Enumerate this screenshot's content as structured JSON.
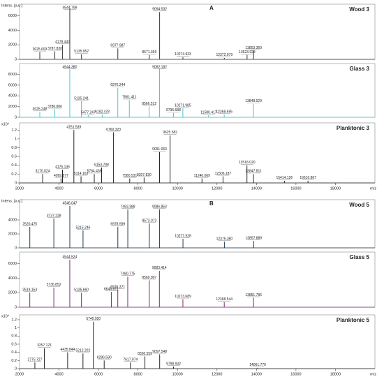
{
  "chart_data": [
    {
      "type": "spectrum",
      "title": "Wood 3",
      "panel_label": "A",
      "y_label": "Intens. [a.u.]",
      "color": "#333333",
      "xlim": [
        2000,
        20000
      ],
      "ylim": [
        0,
        7200
      ],
      "yticks": [
        0,
        2000,
        4000,
        6000
      ],
      "x": [
        3025.693,
        3787.83,
        4178.44,
        4544.799,
        5135.952,
        6977.987,
        8571.369,
        9094.532,
        10274.933,
        12372.079,
        13523.923,
        13853.36
      ],
      "x_labels": [
        "3025.693",
        "3787.830",
        "4178.440",
        "4544.799",
        "5135.952",
        "6977.987",
        "8571.369",
        "9094.532",
        "10274.933",
        "12372.079",
        "13523.923",
        "13853.360"
      ],
      "intensities": [
        1000,
        1100,
        2000,
        7000,
        700,
        1500,
        600,
        6500,
        300,
        200,
        600,
        1200
      ]
    },
    {
      "type": "spectrum",
      "title": "Glass 3",
      "color": "#3ccad4",
      "xlim": [
        2000,
        20000
      ],
      "ylim": [
        0,
        9500
      ],
      "yticks": [
        0,
        2000,
        4000,
        6000,
        8000
      ],
      "x": [
        3025.248,
        3786.806,
        4544.38,
        5135.241,
        5477.247,
        6192.478,
        6976.244,
        7561.411,
        8566.512,
        9092.182,
        9795.688,
        10271.985,
        11580.417,
        12368.695,
        13848.529
      ],
      "x_labels": [
        "3025.248",
        "3786.806",
        "4544.380",
        "5135.241",
        "5477.247",
        "6192.478",
        "6976.244",
        "7561.411",
        "8566.512",
        "9092.182",
        "9795.688",
        "10271.985",
        "11580.417",
        "12368.695",
        "13848.529"
      ],
      "intensities": [
        1000,
        1500,
        9000,
        3000,
        400,
        500,
        5500,
        3200,
        2000,
        9000,
        800,
        1700,
        400,
        500,
        2500
      ]
    },
    {
      "type": "spectrum",
      "title": "Planktonic 3",
      "y_label": "x10⁴",
      "x_label": "m/z",
      "color": "#222222",
      "xlim": [
        2000,
        20000
      ],
      "ylim": [
        0,
        1.3
      ],
      "yticks": [
        0,
        0.2,
        0.4,
        0.6,
        0.8,
        1,
        1.2
      ],
      "xticks": [
        2000,
        4000,
        6000,
        8000,
        10000,
        12000,
        14000,
        16000,
        18000
      ],
      "x": [
        3170.024,
        4099.877,
        4175.136,
        4751.539,
        5114.163,
        5784.436,
        6153.788,
        6760.323,
        7580.531,
        8307.82,
        9091.063,
        9625.582,
        11240.669,
        12306.187,
        13518.02,
        13847.811,
        15414.126,
        16610.867
      ],
      "x_labels": [
        "3170.024",
        "4099.877",
        "4175.136",
        "4751.539",
        "5114.163",
        "5784.436",
        "6153.788",
        "6760.323",
        "7580.531",
        "8307.820",
        "9091.063",
        "9625.582",
        "11240.669",
        "12306.187",
        "13518.020",
        "13847.811",
        "15414.126",
        "16610.867"
      ],
      "intensities": [
        0.2,
        0.1,
        0.3,
        1.2,
        0.15,
        0.2,
        0.35,
        1.15,
        0.1,
        0.12,
        0.7,
        1.08,
        0.1,
        0.15,
        0.4,
        0.2,
        0.05,
        0.05
      ]
    },
    {
      "type": "spectrum",
      "title": "Wood 5",
      "panel_label": "B",
      "y_label": "Intens. [a.u.]",
      "color": "#1f3b4d",
      "xlim": [
        2000,
        20000
      ],
      "ylim": [
        0,
        6500
      ],
      "yticks": [
        0,
        2000,
        4000
      ],
      "x": [
        2520.475,
        3737.228,
        4546.047,
        5215.246,
        6978.599,
        7483.388,
        8573.073,
        9086.853,
        10277.528,
        12375.38,
        13857.889
      ],
      "x_labels": [
        "2520.475",
        "3737.228",
        "4546.047",
        "5215.246",
        "6978.599",
        "7483.388",
        "8573.073",
        "9086.853",
        "10277.528",
        "12375.380",
        "13857.889"
      ],
      "intensities": [
        3000,
        4200,
        6000,
        2500,
        3000,
        5500,
        3500,
        5500,
        1300,
        900,
        1000
      ]
    },
    {
      "type": "spectrum",
      "title": "Glass 5",
      "color": "#7a2a6e",
      "xlim": [
        2000,
        20000
      ],
      "ylim": [
        0,
        7200
      ],
      "yticks": [
        0,
        2000,
        4000,
        6000
      ],
      "x": [
        2519.153,
        3736.852,
        4544.524,
        5135.66,
        6648.871,
        6976.371,
        7480.775,
        8569.907,
        9083.414,
        10273.689,
        12368.544,
        13851.786
      ],
      "x_labels": [
        "2519.153",
        "3736.852",
        "4544.524",
        "5135.660",
        "6648.871",
        "6976.371",
        "7480.775",
        "8569.907",
        "9083.414",
        "10273.689",
        "12368.544",
        "13851.786"
      ],
      "intensities": [
        2000,
        2700,
        6500,
        2000,
        2100,
        2400,
        4200,
        3700,
        5000,
        1100,
        700,
        1300
      ]
    },
    {
      "type": "spectrum",
      "title": "Planktonic 5",
      "y_label": "x10⁴",
      "x_label": "m/z",
      "color": "#222222",
      "xlim": [
        2000,
        20000
      ],
      "ylim": [
        0,
        1.25
      ],
      "yticks": [
        0,
        0.2,
        0.4,
        0.6,
        0.8,
        1,
        1.2
      ],
      "xticks": [
        2000,
        4000,
        6000,
        8000,
        10000,
        12000,
        14000,
        16000,
        18000
      ],
      "x": [
        2775.727,
        3257.121,
        4435.844,
        5212.202,
        5740.92,
        6286.58,
        7617.974,
        8350.559,
        9097.548,
        9798.932,
        14061.77
      ],
      "x_labels": [
        "2775.727",
        "3257.121",
        "4435.844",
        "5212.202",
        "5740.920",
        "6286.580",
        "7617.974",
        "8350.559",
        "9097.548",
        "9798.932",
        "14061.770"
      ],
      "intensities": [
        0.15,
        0.5,
        0.4,
        0.37,
        1.15,
        0.2,
        0.15,
        0.3,
        0.35,
        0.05,
        0.02
      ]
    }
  ]
}
